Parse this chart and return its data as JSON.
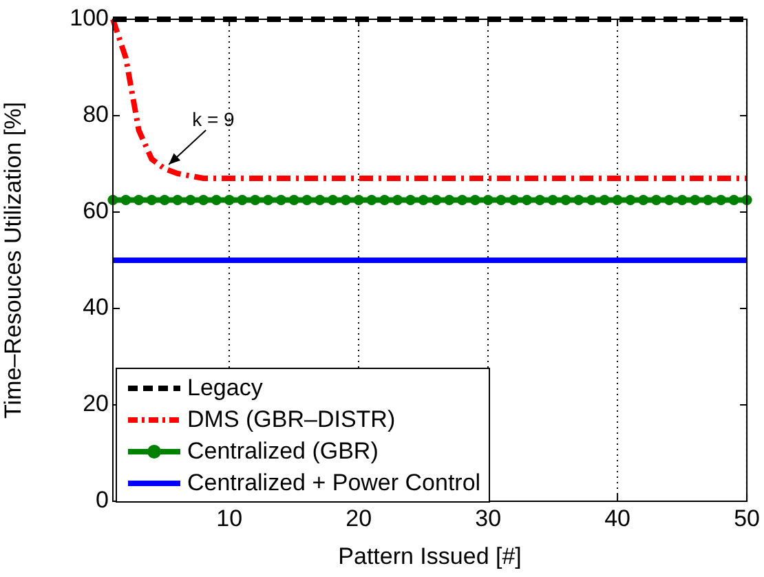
{
  "chart_data": {
    "type": "line",
    "xlabel": "Pattern Issued [#]",
    "ylabel": "Time–Resouces Utilization [%]",
    "x": [
      1,
      2,
      3,
      4,
      5,
      6,
      7,
      8,
      9,
      10,
      11,
      12,
      13,
      14,
      15,
      16,
      17,
      18,
      19,
      20,
      21,
      22,
      23,
      24,
      25,
      26,
      27,
      28,
      29,
      30,
      31,
      32,
      33,
      34,
      35,
      36,
      37,
      38,
      39,
      40,
      41,
      42,
      43,
      44,
      45,
      46,
      47,
      48,
      49,
      50
    ],
    "series": [
      {
        "name": "Legacy",
        "color": "#000000",
        "line_style": "dashed",
        "marker": "none",
        "values": [
          100,
          100,
          100,
          100,
          100,
          100,
          100,
          100,
          100,
          100,
          100,
          100,
          100,
          100,
          100,
          100,
          100,
          100,
          100,
          100,
          100,
          100,
          100,
          100,
          100,
          100,
          100,
          100,
          100,
          100,
          100,
          100,
          100,
          100,
          100,
          100,
          100,
          100,
          100,
          100,
          100,
          100,
          100,
          100,
          100,
          100,
          100,
          100,
          100,
          100
        ]
      },
      {
        "name": "DMS (GBR–DISTR)",
        "color": "#ff0000",
        "line_style": "dashdot",
        "marker": "none",
        "values": [
          100,
          92,
          77,
          71,
          69,
          68,
          67.5,
          67,
          67,
          67,
          67,
          67,
          67,
          67,
          67,
          67,
          67,
          67,
          67,
          67,
          67,
          67,
          67,
          67,
          67,
          67,
          67,
          67,
          67,
          67,
          67,
          67,
          67,
          67,
          67,
          67,
          67,
          67,
          67,
          67,
          67,
          67,
          67,
          67,
          67,
          67,
          67,
          67,
          67,
          67
        ]
      },
      {
        "name": "Centralized (GBR)",
        "color": "#008000",
        "line_style": "solid",
        "marker": "circle",
        "values": [
          62.5,
          62.5,
          62.5,
          62.5,
          62.5,
          62.5,
          62.5,
          62.5,
          62.5,
          62.5,
          62.5,
          62.5,
          62.5,
          62.5,
          62.5,
          62.5,
          62.5,
          62.5,
          62.5,
          62.5,
          62.5,
          62.5,
          62.5,
          62.5,
          62.5,
          62.5,
          62.5,
          62.5,
          62.5,
          62.5,
          62.5,
          62.5,
          62.5,
          62.5,
          62.5,
          62.5,
          62.5,
          62.5,
          62.5,
          62.5,
          62.5,
          62.5,
          62.5,
          62.5,
          62.5,
          62.5,
          62.5,
          62.5,
          62.5,
          62.5
        ]
      },
      {
        "name": "Centralized + Power Control",
        "color": "#0000ff",
        "line_style": "solid",
        "marker": "none",
        "values": [
          50,
          50,
          50,
          50,
          50,
          50,
          50,
          50,
          50,
          50,
          50,
          50,
          50,
          50,
          50,
          50,
          50,
          50,
          50,
          50,
          50,
          50,
          50,
          50,
          50,
          50,
          50,
          50,
          50,
          50,
          50,
          50,
          50,
          50,
          50,
          50,
          50,
          50,
          50,
          50,
          50,
          50,
          50,
          50,
          50,
          50,
          50,
          50,
          50,
          50
        ]
      }
    ],
    "xlim": [
      1,
      50
    ],
    "xticks": [
      10,
      20,
      30,
      40,
      50
    ],
    "ylim": [
      0,
      100
    ],
    "yticks": [
      0,
      20,
      40,
      60,
      80,
      100
    ],
    "grid": "x",
    "legend": "bottom left",
    "annotations": [
      {
        "text": "k = 9",
        "x": 5,
        "y": 69
      }
    ]
  }
}
